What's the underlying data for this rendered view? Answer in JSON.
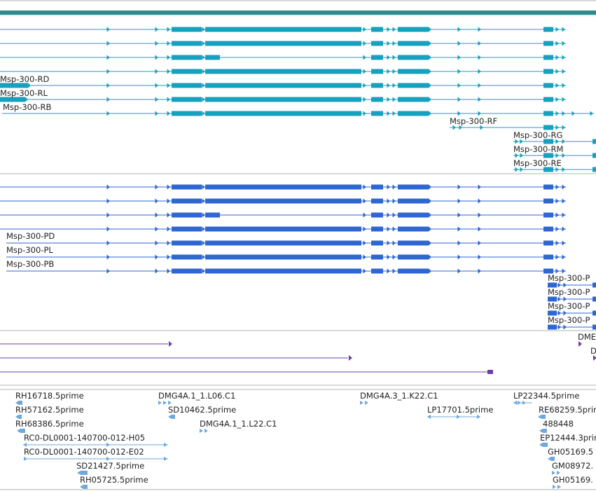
{
  "colors": {
    "background": "#ffffff",
    "track_border": "#b3b3b3",
    "top_band": "#2e8b8b",
    "transcripts_rna": "#17a1bf",
    "transcripts_protein": "#2f67d1",
    "purple_features": "#6b3fa6",
    "est_features": "#6fa8dc",
    "text": "#222222"
  },
  "track_rna": {
    "labels": [
      "Msp-300-RD",
      "Msp-300-RL",
      "Msp-300-RB",
      "Msp-300-RF",
      "Msp-300-RG",
      "Msp-300-RM",
      "Msp-300-RE"
    ]
  },
  "track_protein": {
    "labels": [
      "Msp-300-PD",
      "Msp-300-PL",
      "Msp-300-PB",
      "Msp-300-P",
      "Msp-300-P",
      "Msp-300-P",
      "Msp-300-P"
    ]
  },
  "track_purple": {
    "labels": [
      "DME",
      "D"
    ]
  },
  "track_est": {
    "labels": [
      "RH16718.5prime",
      "RH57162.5prime",
      "RH68386.5prime",
      "RC0-DL0001-140700-012-H05",
      "RC0-DL0001-140700-012-E02",
      "SD21427.5prime",
      "RH05725.5prime",
      "DMG4A.1_1.L06.C1",
      "SD10462.5prime",
      "DMG4A.1_1.L22.C1",
      "DMG4A.3_1.K22.C1",
      "LP17701.5prime",
      "LP22344.5prime",
      "RE68259.5prime",
      "488448",
      "EP12444.3prime",
      "GH05169.5",
      "GM08972.",
      "GH05169."
    ]
  }
}
